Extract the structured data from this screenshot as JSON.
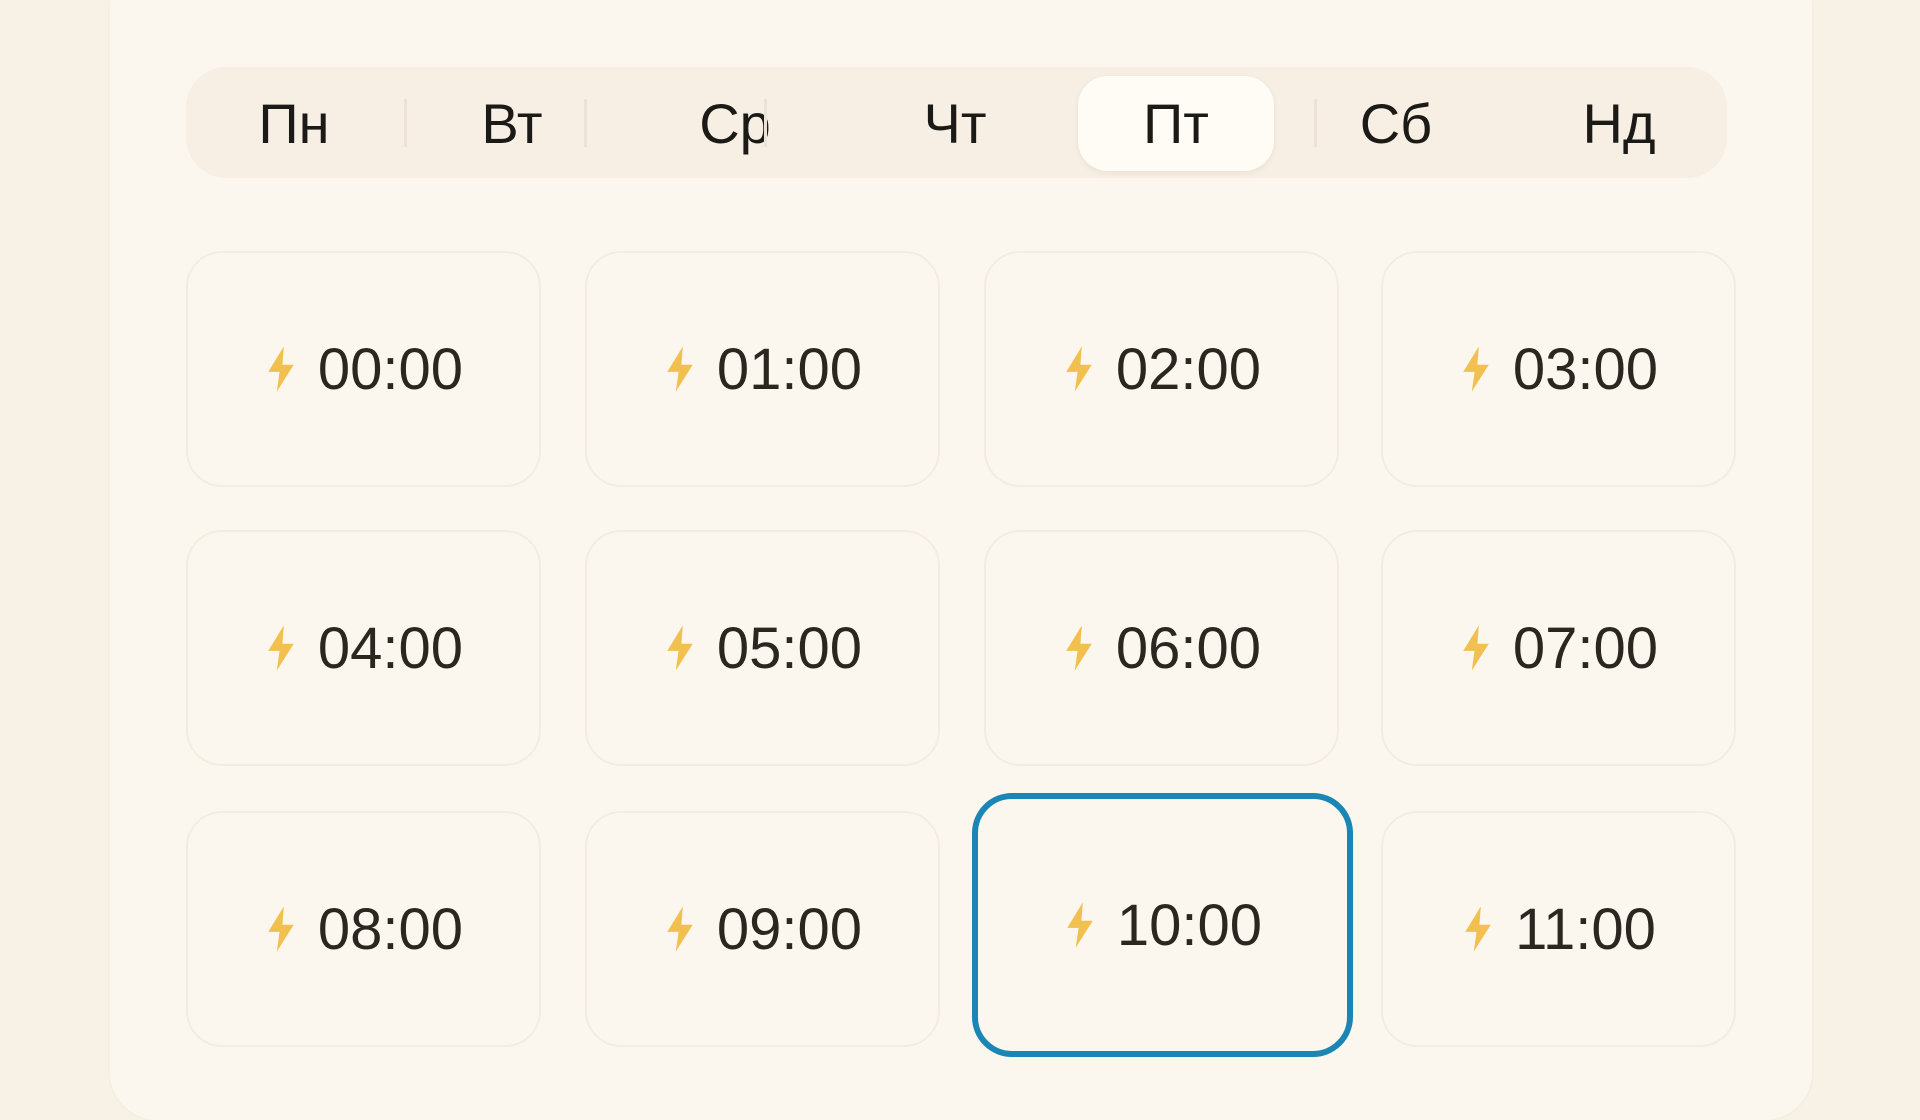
{
  "days": [
    {
      "label": "Пн",
      "selected": false
    },
    {
      "label": "Вт",
      "selected": false
    },
    {
      "label": "Ср",
      "selected": false
    },
    {
      "label": "Чт",
      "selected": false
    },
    {
      "label": "Пт",
      "selected": true
    },
    {
      "label": "Сб",
      "selected": false
    },
    {
      "label": "Нд",
      "selected": false
    }
  ],
  "slots": [
    {
      "time": "00:00",
      "icon": "lightning-icon"
    },
    {
      "time": "01:00",
      "icon": "lightning-icon"
    },
    {
      "time": "02:00",
      "icon": "lightning-icon"
    },
    {
      "time": "03:00",
      "icon": "lightning-icon"
    },
    {
      "time": "04:00",
      "icon": "lightning-icon"
    },
    {
      "time": "05:00",
      "icon": "lightning-icon"
    },
    {
      "time": "06:00",
      "icon": "lightning-icon"
    },
    {
      "time": "07:00",
      "icon": "lightning-icon"
    },
    {
      "time": "08:00",
      "icon": "lightning-icon"
    },
    {
      "time": "09:00",
      "icon": "lightning-icon"
    },
    {
      "time": "10:00",
      "icon": "lightning-icon",
      "selected": true
    },
    {
      "time": "11:00",
      "icon": "lightning-icon"
    }
  ],
  "colors": {
    "accent": "#1a86b5",
    "icon": "#f2c04e",
    "background": "#fcf7ee"
  }
}
